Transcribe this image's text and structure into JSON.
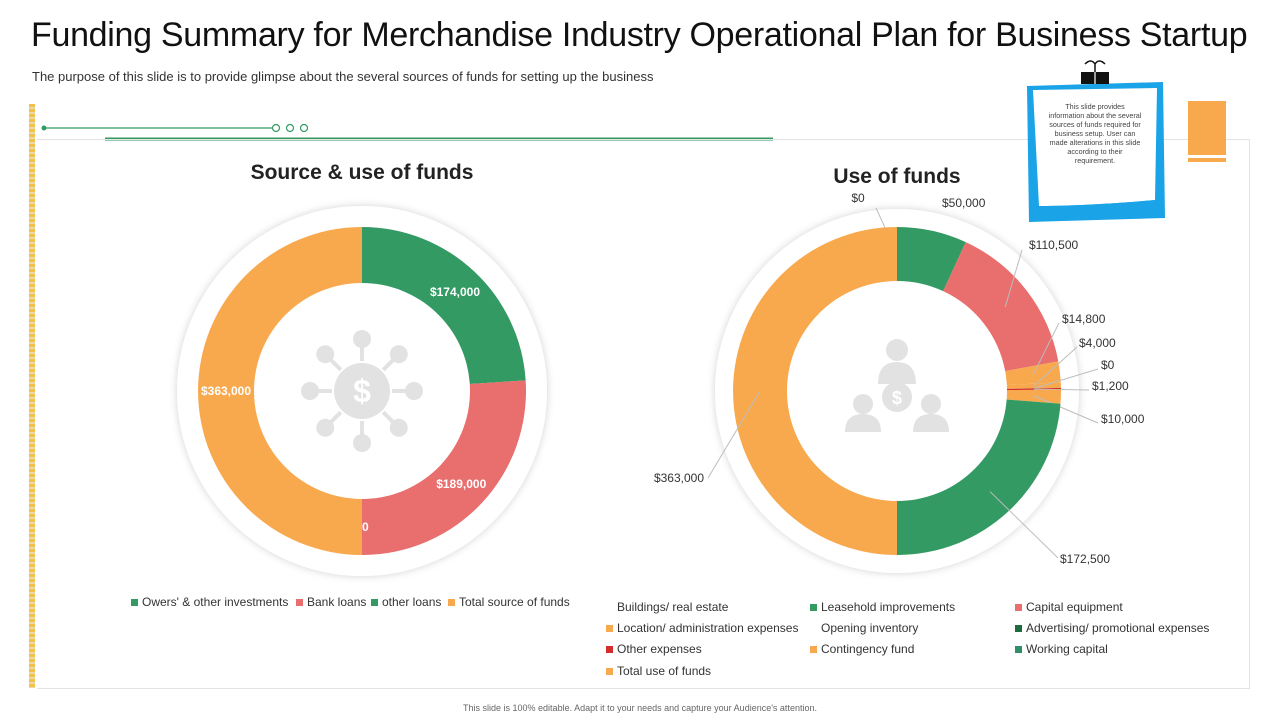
{
  "header": {
    "title": "Funding Summary for Merchandise Industry Operational Plan for Business Startup",
    "subtitle": "The purpose of this slide is to provide glimpse about the several sources of funds for setting up the business"
  },
  "note": {
    "text": "This slide provides information about the several sources of funds required for business setup. User can made alterations in this slide according to their requirement."
  },
  "footer": {
    "text": "This slide is 100% editable. Adapt it to your needs and capture your Audience's attention."
  },
  "colors": {
    "green": "#339A63",
    "red": "#E96E6E",
    "orange": "#F8A94E",
    "darkgreen": "#1E6B3E",
    "brightred": "#D62C2C",
    "teal": "#2F8F66",
    "blue": "#1AA3E6"
  },
  "icons": {
    "left_center": "money-network-icon",
    "right_center": "investors-money-icon",
    "note_clip": "binder-clip-icon"
  },
  "chart_data": [
    {
      "type": "pie",
      "title": "Source & use of funds",
      "slices": [
        {
          "label": "Owers' & other investments",
          "value": 174000,
          "text": "$174,000",
          "color": "#339A63"
        },
        {
          "label": "Bank loans",
          "value": 189000,
          "text": "$189,000",
          "color": "#E96E6E"
        },
        {
          "label": "other loans",
          "value": 0,
          "text": "$0",
          "color": "#339A63"
        },
        {
          "label": "Total source of funds",
          "value": 363000,
          "text": "$363,000",
          "color": "#F8A94E"
        }
      ],
      "legend": [
        {
          "label": "Owers' & other investments",
          "color": "#339A63"
        },
        {
          "label": "Bank loans",
          "color": "#E96E6E"
        },
        {
          "label": "other loans",
          "color": "#339A63"
        },
        {
          "label": "Total source of funds",
          "color": "#F8A94E"
        }
      ]
    },
    {
      "type": "pie",
      "title": "Use of funds",
      "slices": [
        {
          "label": "Buildings/ real estate",
          "value": 0,
          "text": "$0",
          "color": ""
        },
        {
          "label": "Leasehold improvements",
          "value": 50000,
          "text": "$50,000",
          "color": "#339A63"
        },
        {
          "label": "Capital equipment",
          "value": 110500,
          "text": "$110,500",
          "color": "#E96E6E"
        },
        {
          "label": "Location/ administration expenses",
          "value": 14800,
          "text": "$14,800",
          "color": "#F8A94E"
        },
        {
          "label": "Opening inventory",
          "value": 4000,
          "text": "$4,000",
          "color": ""
        },
        {
          "label": "Advertising/ promotional expenses",
          "value": 0,
          "text": "$0",
          "color": "#1E6B3E"
        },
        {
          "label": "Other expenses",
          "value": 1200,
          "text": "$1,200",
          "color": "#D62C2C"
        },
        {
          "label": "Contingency fund",
          "value": 10000,
          "text": "$10,000",
          "color": "#F8A94E"
        },
        {
          "label": "Working capital",
          "value": 172500,
          "text": "$172,500",
          "color": "#339A63"
        },
        {
          "label": "Total use of funds",
          "value": 363000,
          "text": "$363,000",
          "color": "#F8A94E"
        }
      ],
      "legend": [
        {
          "label": "Buildings/ real estate",
          "color": ""
        },
        {
          "label": "Leasehold improvements",
          "color": "#339A63"
        },
        {
          "label": "Capital equipment",
          "color": "#E96E6E"
        },
        {
          "label": "Location/ administration expenses",
          "color": "#F8A94E"
        },
        {
          "label": "Opening inventory",
          "color": ""
        },
        {
          "label": "Advertising/ promotional expenses",
          "color": "#1E6B3E"
        },
        {
          "label": "Other expenses",
          "color": "#D62C2C"
        },
        {
          "label": "Contingency fund",
          "color": "#F8A94E"
        },
        {
          "label": "Working capital",
          "color": "#2F8F66"
        },
        {
          "label": "Total use of funds",
          "color": "#F8A94E"
        }
      ]
    }
  ]
}
